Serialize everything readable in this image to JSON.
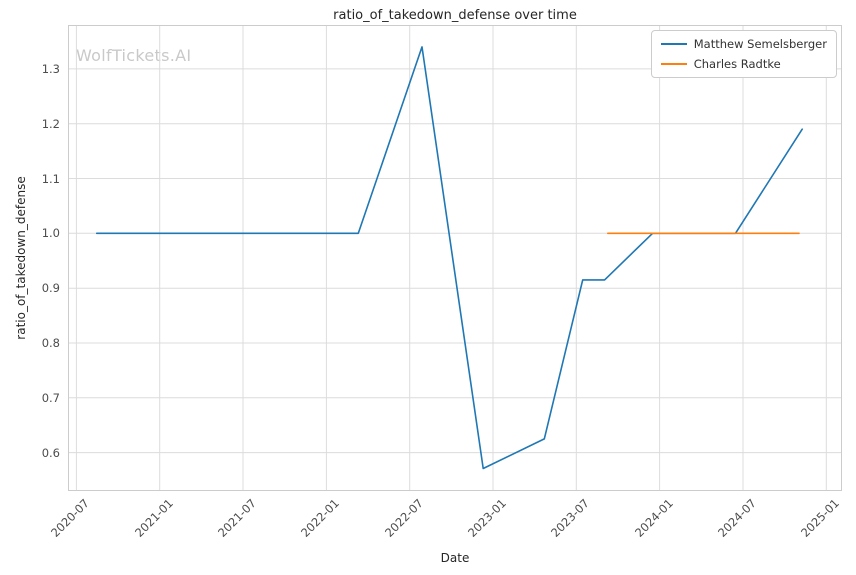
{
  "figure": {
    "title": "ratio_of_takedown_defense over time",
    "watermark": "WolfTickets.AI",
    "xlabel": "Date",
    "ylabel": "ratio_of_takedown_defense"
  },
  "legend": {
    "items": [
      {
        "label": "Matthew Semelsberger",
        "color": "#1f77b4"
      },
      {
        "label": "Charles Radtke",
        "color": "#ff7f0e"
      }
    ]
  },
  "chart_data": {
    "type": "line",
    "title": "ratio_of_takedown_defense over time",
    "xlabel": "Date",
    "ylabel": "ratio_of_takedown_defense",
    "grid": true,
    "legend_position": "upper right",
    "x_axis": {
      "min": "2020-06-13",
      "max": "2025-02-05",
      "tick_labels": [
        "2020-07",
        "2021-01",
        "2021-07",
        "2022-01",
        "2022-07",
        "2023-01",
        "2023-07",
        "2024-01",
        "2024-07",
        "2025-01"
      ]
    },
    "y_axis": {
      "min": 0.53,
      "max": 1.38,
      "ticks": [
        0.6,
        0.7,
        0.8,
        0.9,
        1.0,
        1.1,
        1.2,
        1.3
      ]
    },
    "series": [
      {
        "name": "Matthew Semelsberger",
        "color": "#1f77b4",
        "points": [
          [
            "2020-08-15",
            1.0
          ],
          [
            "2022-03-10",
            1.0
          ],
          [
            "2022-07-28",
            1.34
          ],
          [
            "2022-12-10",
            0.571
          ],
          [
            "2023-04-22",
            0.625
          ],
          [
            "2023-07-15",
            0.915
          ],
          [
            "2023-09-02",
            0.915
          ],
          [
            "2023-12-16",
            1.0
          ],
          [
            "2024-06-15",
            1.0
          ],
          [
            "2024-11-09",
            1.19
          ]
        ]
      },
      {
        "name": "Charles Radtke",
        "color": "#ff7f0e",
        "points": [
          [
            "2023-09-09",
            1.0
          ],
          [
            "2024-11-02",
            1.0
          ]
        ]
      }
    ]
  }
}
